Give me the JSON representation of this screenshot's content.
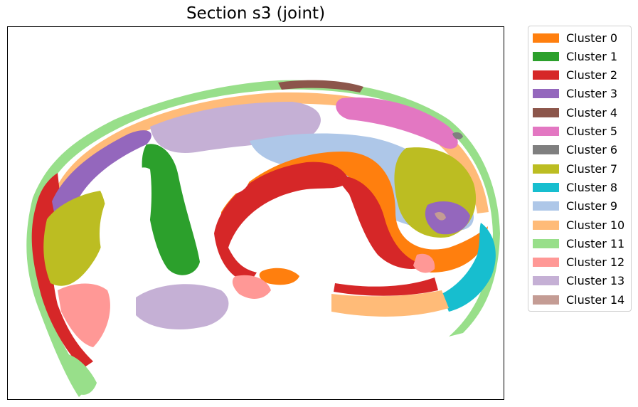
{
  "chart_data": {
    "type": "scatter",
    "title": "Section s3 (joint)",
    "xlabel": "",
    "ylabel": "",
    "axes_ticks": "none",
    "legend_placement": "outside-right",
    "series": [
      {
        "name": "Cluster 0",
        "color": "#ff7f0e"
      },
      {
        "name": "Cluster 1",
        "color": "#2ca02c"
      },
      {
        "name": "Cluster 2",
        "color": "#d62728"
      },
      {
        "name": "Cluster 3",
        "color": "#9467bd"
      },
      {
        "name": "Cluster 4",
        "color": "#8c564b"
      },
      {
        "name": "Cluster 5",
        "color": "#e377c2"
      },
      {
        "name": "Cluster 6",
        "color": "#7f7f7f"
      },
      {
        "name": "Cluster 7",
        "color": "#bcbd22"
      },
      {
        "name": "Cluster 8",
        "color": "#17becf"
      },
      {
        "name": "Cluster 9",
        "color": "#aec7e8"
      },
      {
        "name": "Cluster 10",
        "color": "#ffbb78"
      },
      {
        "name": "Cluster 11",
        "color": "#98df8a"
      },
      {
        "name": "Cluster 12",
        "color": "#ff9896"
      },
      {
        "name": "Cluster 13",
        "color": "#c5b0d5"
      },
      {
        "name": "Cluster 14",
        "color": "#c49c94"
      }
    ]
  }
}
